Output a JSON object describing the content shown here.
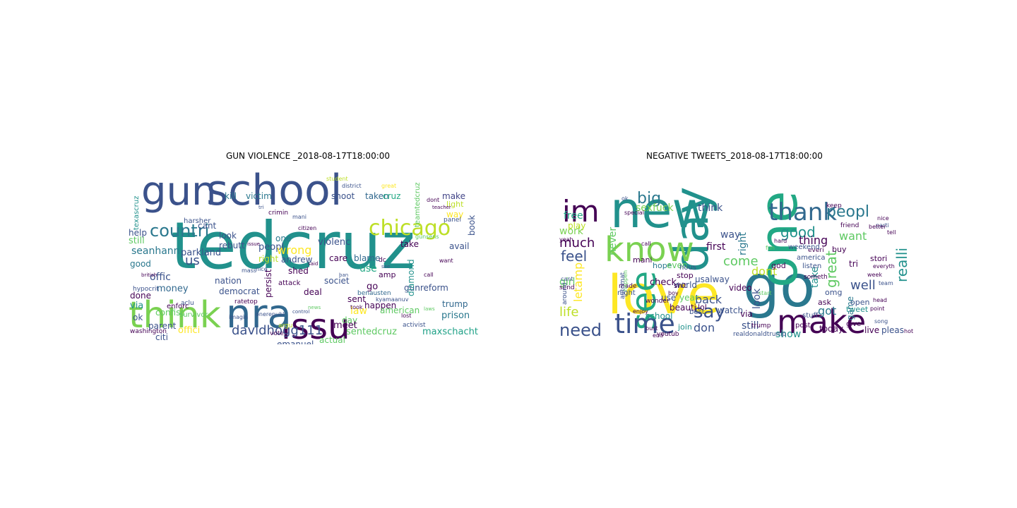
{
  "chart_data": [
    {
      "type": "wordcloud",
      "title": "GUN VIOLENCE _2018-08-17T18:00:00",
      "words": [
        {
          "text": "tedcruz",
          "color": "#21918c"
        },
        {
          "text": "school",
          "color": "#3b528b"
        },
        {
          "text": "gun",
          "color": "#3b528b"
        },
        {
          "text": "issu",
          "color": "#440154"
        },
        {
          "text": "nra",
          "color": "#31688e"
        },
        {
          "text": "think",
          "color": "#7ad151"
        },
        {
          "text": "chicago",
          "color": "#bddf26"
        },
        {
          "text": "countri",
          "color": "#2a788e"
        },
        {
          "text": "davidhogg111",
          "color": "#3b528b"
        },
        {
          "text": "sentedcruz",
          "color": "#5ec962"
        },
        {
          "text": "maxschacht",
          "color": "#1fa187"
        },
        {
          "text": "kill",
          "color": "#2a788e"
        },
        {
          "text": "victim",
          "color": "#2a788e"
        },
        {
          "text": "shoot",
          "color": "#3b528b"
        },
        {
          "text": "taken",
          "color": "#31688e"
        },
        {
          "text": "cruz",
          "color": "#22a884"
        },
        {
          "text": "make",
          "color": "#414487"
        },
        {
          "text": "light",
          "color": "#bddf26"
        },
        {
          "text": "way",
          "color": "#fde725"
        },
        {
          "text": "book",
          "color": "#3b528b"
        },
        {
          "text": "avail",
          "color": "#3b528b"
        },
        {
          "text": "peopl",
          "color": "#3b528b"
        },
        {
          "text": "violenc",
          "color": "#3b528b"
        },
        {
          "text": "wrong",
          "color": "#fde725"
        },
        {
          "text": "parkland",
          "color": "#3b528b"
        },
        {
          "text": "right",
          "color": "#bddf26"
        },
        {
          "text": "take",
          "color": "#440154"
        },
        {
          "text": "care",
          "color": "#440154"
        },
        {
          "text": "blame",
          "color": "#31688e"
        },
        {
          "text": "us",
          "color": "#3b528b"
        },
        {
          "text": "offic",
          "color": "#3b528b"
        },
        {
          "text": "good",
          "color": "#2a788e"
        },
        {
          "text": "money",
          "color": "#31688e"
        },
        {
          "text": "done",
          "color": "#440154"
        },
        {
          "text": "via",
          "color": "#21918c"
        },
        {
          "text": "still",
          "color": "#5ec962"
        },
        {
          "text": "cant",
          "color": "#3b528b"
        },
        {
          "text": "look",
          "color": "#3b528b"
        },
        {
          "text": "help",
          "color": "#3b528b"
        },
        {
          "text": "seanhann",
          "color": "#2a788e"
        },
        {
          "text": "use",
          "color": "#22a884"
        },
        {
          "text": "go",
          "color": "#440154"
        },
        {
          "text": "amp",
          "color": "#440154"
        },
        {
          "text": "happen",
          "color": "#440154"
        },
        {
          "text": "american",
          "color": "#5ec962"
        },
        {
          "text": "trump",
          "color": "#31688e"
        },
        {
          "text": "prison",
          "color": "#2a788e"
        },
        {
          "text": "law",
          "color": "#fde725"
        },
        {
          "text": "day",
          "color": "#5ec962"
        },
        {
          "text": "gunreform",
          "color": "#3b528b"
        },
        {
          "text": "parent",
          "color": "#3b528b"
        },
        {
          "text": "offici",
          "color": "#fde725"
        },
        {
          "text": "emanuel",
          "color": "#3b528b"
        },
        {
          "text": "democrat",
          "color": "#3b528b"
        },
        {
          "text": "nation",
          "color": "#3b528b"
        },
        {
          "text": "citi",
          "color": "#3b528b"
        },
        {
          "text": "meet",
          "color": "#440154"
        },
        {
          "text": "actual",
          "color": "#5ec962"
        },
        {
          "text": "diamond",
          "color": "#21918c"
        },
        {
          "text": "persist",
          "color": "#440154"
        },
        {
          "text": "deal",
          "color": "#440154"
        },
        {
          "text": "rebutt",
          "color": "#3b528b"
        },
        {
          "text": "andrew",
          "color": "#3b528b"
        },
        {
          "text": "confisc",
          "color": "#5ec962"
        },
        {
          "text": "one",
          "color": "#2a788e"
        },
        {
          "text": "shed",
          "color": "#440154"
        },
        {
          "text": "sent",
          "color": "#440154"
        },
        {
          "text": "societ",
          "color": "#3b528b"
        },
        {
          "text": "texascruz",
          "color": "#21918c"
        },
        {
          "text": "teamtedcruz",
          "color": "#5ec962"
        },
        {
          "text": "benausten",
          "color": "#31688e"
        },
        {
          "text": "washington",
          "color": "#440154"
        },
        {
          "text": "harsher",
          "color": "#3b528b"
        },
        {
          "text": "attack",
          "color": "#440154"
        },
        {
          "text": "aclu",
          "color": "#3b528b"
        },
        {
          "text": "enforc",
          "color": "#440154"
        },
        {
          "text": "survivor",
          "color": "#5ec962"
        },
        {
          "text": "top",
          "color": "#440154"
        },
        {
          "text": "rate",
          "color": "#440154"
        },
        {
          "text": "ok",
          "color": "#3b528b"
        },
        {
          "text": "hypocrit",
          "color": "#3b528b"
        },
        {
          "text": "kyamaanuv",
          "color": "#3b528b"
        },
        {
          "text": "citizen",
          "color": "#440154"
        },
        {
          "text": "district",
          "color": "#3b528b"
        },
        {
          "text": "student",
          "color": "#bddf26"
        },
        {
          "text": "crimin",
          "color": "#440154"
        },
        {
          "text": "onerepubl",
          "color": "#3b528b"
        },
        {
          "text": "imagin",
          "color": "#3b528b"
        },
        {
          "text": "argu",
          "color": "#bddf26"
        },
        {
          "text": "vote",
          "color": "#440154"
        },
        {
          "text": "activist",
          "color": "#3b528b"
        },
        {
          "text": "lost",
          "color": "#440154"
        },
        {
          "text": "took",
          "color": "#440154"
        },
        {
          "text": "dc",
          "color": "#440154"
        },
        {
          "text": "panel",
          "color": "#3b528b"
        },
        {
          "text": "great",
          "color": "#fde725"
        },
        {
          "text": "dont",
          "color": "#440154"
        },
        {
          "text": "want",
          "color": "#440154"
        },
        {
          "text": "nice",
          "color": "#3b528b"
        },
        {
          "text": "mass",
          "color": "#3b528b"
        },
        {
          "text": "call",
          "color": "#440154"
        },
        {
          "text": "mani",
          "color": "#3b528b"
        },
        {
          "text": "gunsens",
          "color": "#5ec962"
        },
        {
          "text": "tri",
          "color": "#3b528b"
        },
        {
          "text": "teacher",
          "color": "#440154"
        },
        {
          "text": "see",
          "color": "#3b528b"
        },
        {
          "text": "said",
          "color": "#440154"
        },
        {
          "text": "laws",
          "color": "#5ec962"
        },
        {
          "text": "british",
          "color": "#440154"
        },
        {
          "text": "ban",
          "color": "#3b528b"
        },
        {
          "text": "control",
          "color": "#3b528b"
        },
        {
          "text": "news",
          "color": "#5ec962"
        },
        {
          "text": "issue",
          "color": "#440154"
        }
      ]
    },
    {
      "type": "wordcloud",
      "title": "NEGATIVE TWEETS_2018-08-17T18:00:00",
      "words": [
        {
          "text": "day",
          "color": "#21918c"
        },
        {
          "text": "love",
          "color": "#fde725"
        },
        {
          "text": "new",
          "color": "#21918c"
        },
        {
          "text": "go",
          "color": "#2a788e"
        },
        {
          "text": "one",
          "color": "#22a884"
        },
        {
          "text": "know",
          "color": "#7ad151"
        },
        {
          "text": "make",
          "color": "#440154"
        },
        {
          "text": "see",
          "color": "#22a884"
        },
        {
          "text": "im",
          "color": "#440154"
        },
        {
          "text": "time",
          "color": "#3b528b"
        },
        {
          "text": "thank",
          "color": "#31688e"
        },
        {
          "text": "say",
          "color": "#3b528b"
        },
        {
          "text": "need",
          "color": "#3b528b"
        },
        {
          "text": "big",
          "color": "#2a788e"
        },
        {
          "text": "peopl",
          "color": "#2a788e"
        },
        {
          "text": "good",
          "color": "#21918c"
        },
        {
          "text": "realli",
          "color": "#21918c"
        },
        {
          "text": "great",
          "color": "#5ec962"
        },
        {
          "text": "sexfuck",
          "color": "#7ad151"
        },
        {
          "text": "think",
          "color": "#3b528b"
        },
        {
          "text": "feel",
          "color": "#3b528b"
        },
        {
          "text": "much",
          "color": "#440154"
        },
        {
          "text": "life",
          "color": "#bddf26"
        },
        {
          "text": "letamp",
          "color": "#fde725"
        },
        {
          "text": "work",
          "color": "#7ad151"
        },
        {
          "text": "never",
          "color": "#5ec962"
        },
        {
          "text": "come",
          "color": "#5ec962"
        },
        {
          "text": "dont",
          "color": "#bddf26"
        },
        {
          "text": "right",
          "color": "#2a788e"
        },
        {
          "text": "thing",
          "color": "#440154"
        },
        {
          "text": "want",
          "color": "#5ec962"
        },
        {
          "text": "way",
          "color": "#3b528b"
        },
        {
          "text": "well",
          "color": "#3b528b"
        },
        {
          "text": "take",
          "color": "#21918c"
        },
        {
          "text": "look",
          "color": "#3b528b"
        },
        {
          "text": "got",
          "color": "#2a788e"
        },
        {
          "text": "back",
          "color": "#3b528b"
        },
        {
          "text": "don",
          "color": "#3b528b"
        },
        {
          "text": "still",
          "color": "#3b528b"
        },
        {
          "text": "show",
          "color": "#21918c"
        },
        {
          "text": "girl",
          "color": "#5ec962"
        },
        {
          "text": "free",
          "color": "#22a884"
        },
        {
          "text": "first",
          "color": "#440154"
        },
        {
          "text": "check",
          "color": "#440154"
        },
        {
          "text": "world",
          "color": "#3b528b"
        },
        {
          "text": "usalway",
          "color": "#3b528b"
        },
        {
          "text": "hope",
          "color": "#2a788e"
        },
        {
          "text": "even",
          "color": "#5ec962"
        },
        {
          "text": "play",
          "color": "#bddf26"
        },
        {
          "text": "video",
          "color": "#440154"
        },
        {
          "text": "watch",
          "color": "#3b528b"
        },
        {
          "text": "year",
          "color": "#5ec962"
        },
        {
          "text": "use",
          "color": "#3b528b"
        },
        {
          "text": "via",
          "color": "#440154"
        },
        {
          "text": "live",
          "color": "#440154"
        },
        {
          "text": "pleas",
          "color": "#3b528b"
        },
        {
          "text": "today",
          "color": "#440154"
        },
        {
          "text": "game",
          "color": "#2a788e"
        },
        {
          "text": "stori",
          "color": "#440154"
        },
        {
          "text": "tri",
          "color": "#440154"
        },
        {
          "text": "best",
          "color": "#3b528b"
        },
        {
          "text": "mani",
          "color": "#440154"
        },
        {
          "text": "school",
          "color": "#21918c"
        },
        {
          "text": "made",
          "color": "#440154"
        },
        {
          "text": "night",
          "color": "#3b528b"
        },
        {
          "text": "stop",
          "color": "#440154"
        },
        {
          "text": "shit",
          "color": "#440154"
        },
        {
          "text": "lol",
          "color": "#440154"
        },
        {
          "text": "join",
          "color": "#21918c"
        },
        {
          "text": "ask",
          "color": "#440154"
        },
        {
          "text": "omg",
          "color": "#3b528b"
        },
        {
          "text": "tweet",
          "color": "#21918c"
        },
        {
          "text": "open",
          "color": "#3b528b"
        },
        {
          "text": "beauti",
          "color": "#440154"
        },
        {
          "text": "wonder",
          "color": "#440154"
        },
        {
          "text": "trump",
          "color": "#440154"
        },
        {
          "text": "realdonaldtrump",
          "color": "#3b528b"
        },
        {
          "text": "youtub",
          "color": "#440154"
        },
        {
          "text": "end",
          "color": "#440154"
        },
        {
          "text": "boy",
          "color": "#440154"
        },
        {
          "text": "buy",
          "color": "#440154"
        },
        {
          "text": "god",
          "color": "#440154"
        },
        {
          "text": "hous",
          "color": "#3b528b"
        },
        {
          "text": "cant",
          "color": "#3b528b"
        },
        {
          "text": "send",
          "color": "#440154"
        },
        {
          "text": "keep",
          "color": "#440154"
        },
        {
          "text": "friend",
          "color": "#440154"
        },
        {
          "text": "everi",
          "color": "#440154"
        },
        {
          "text": "america",
          "color": "#3b528b"
        },
        {
          "text": "someth",
          "color": "#440154"
        },
        {
          "text": "weekend",
          "color": "#3b528b"
        },
        {
          "text": "listen",
          "color": "#3b528b"
        },
        {
          "text": "stuff",
          "color": "#3b528b"
        },
        {
          "text": "give",
          "color": "#440154"
        },
        {
          "text": "post",
          "color": "#440154"
        },
        {
          "text": "around",
          "color": "#3b528b"
        },
        {
          "text": "happen",
          "color": "#5ec962"
        },
        {
          "text": "automat",
          "color": "#3b528b"
        },
        {
          "text": "special",
          "color": "#440154"
        },
        {
          "text": "ok",
          "color": "#3b528b"
        },
        {
          "text": "week",
          "color": "#440154"
        },
        {
          "text": "everyth",
          "color": "#440154"
        },
        {
          "text": "parti",
          "color": "#3b528b"
        },
        {
          "text": "hot",
          "color": "#440154"
        },
        {
          "text": "tell",
          "color": "#440154"
        },
        {
          "text": "nice",
          "color": "#440154"
        },
        {
          "text": "team",
          "color": "#3b528b"
        },
        {
          "text": "better",
          "color": "#440154"
        },
        {
          "text": "yeah",
          "color": "#440154"
        },
        {
          "text": "enjoy",
          "color": "#440154"
        },
        {
          "text": "start",
          "color": "#5ec962"
        },
        {
          "text": "bust",
          "color": "#440154"
        },
        {
          "text": "head",
          "color": "#440154"
        },
        {
          "text": "song",
          "color": "#3b528b"
        },
        {
          "text": "point",
          "color": "#440154"
        },
        {
          "text": "call",
          "color": "#440154"
        },
        {
          "text": "fun",
          "color": "#5ec962"
        },
        {
          "text": "hard",
          "color": "#440154"
        },
        {
          "text": "win",
          "color": "#5ec962"
        }
      ]
    }
  ]
}
